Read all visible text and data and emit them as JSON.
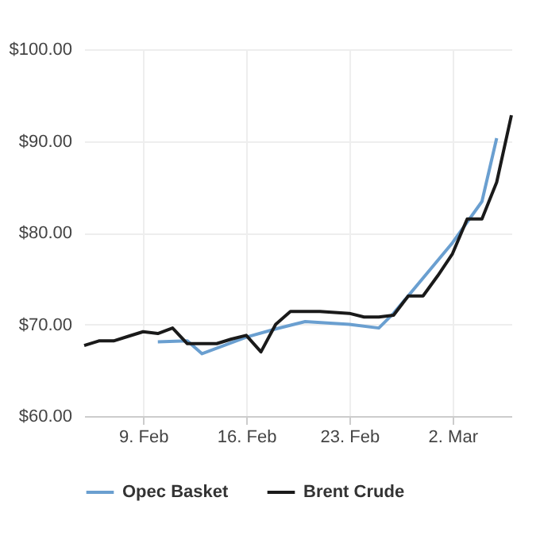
{
  "chart_data": {
    "type": "line",
    "series": [
      {
        "name": "Opec Basket",
        "color": "#6a9fd0",
        "x": [
          "--02-10",
          "--02-12",
          "--02-13",
          "--02-16",
          "--02-18",
          "--02-20",
          "--02-23",
          "--02-25",
          "--02-26",
          "--03-02",
          "--03-04",
          "--03-05"
        ],
        "values": [
          68.1,
          68.2,
          66.8,
          68.6,
          69.5,
          70.3,
          70.0,
          69.6,
          71.2,
          78.9,
          83.4,
          90.3
        ]
      },
      {
        "name": "Brent Crude",
        "color": "#1a1a1a",
        "x": [
          "--02-05",
          "--02-06",
          "--02-07",
          "--02-08",
          "--02-09",
          "--02-10",
          "--02-11",
          "--02-12",
          "--02-13",
          "--02-14",
          "--02-15",
          "--02-16",
          "--02-17",
          "--02-18",
          "--02-19",
          "--02-20",
          "--02-21",
          "--02-22",
          "--02-23",
          "--02-24",
          "--02-25",
          "--02-26",
          "--02-27",
          "--02-28",
          "--03-01",
          "--03-02",
          "--03-03",
          "--03-04",
          "--03-05",
          "--03-06"
        ],
        "values": [
          67.7,
          68.2,
          68.2,
          68.7,
          69.2,
          69.0,
          69.6,
          67.9,
          67.9,
          67.9,
          68.4,
          68.8,
          67.0,
          70.0,
          71.4,
          71.4,
          71.4,
          71.3,
          71.2,
          70.8,
          70.8,
          71.0,
          73.1,
          73.1,
          75.3,
          77.7,
          81.5,
          81.5,
          85.5,
          92.8
        ]
      }
    ],
    "xlim": [
      "--02-05",
      "--03-06"
    ],
    "xticks": [
      {
        "value": "--02-09",
        "label": "9. Feb"
      },
      {
        "value": "--02-16",
        "label": "16. Feb"
      },
      {
        "value": "--02-23",
        "label": "23. Feb"
      },
      {
        "value": "--03-02",
        "label": "2. Mar"
      }
    ],
    "ylim": [
      60,
      100
    ],
    "yticks": [
      {
        "value": 60,
        "label": "$60.00"
      },
      {
        "value": 70,
        "label": "$70.00"
      },
      {
        "value": 80,
        "label": "$80.00"
      },
      {
        "value": 90,
        "label": "$90.00"
      },
      {
        "value": 100,
        "label": "$100.00"
      }
    ],
    "grid": true,
    "legend": "bottom",
    "marker": "none",
    "line_style": "solid"
  }
}
